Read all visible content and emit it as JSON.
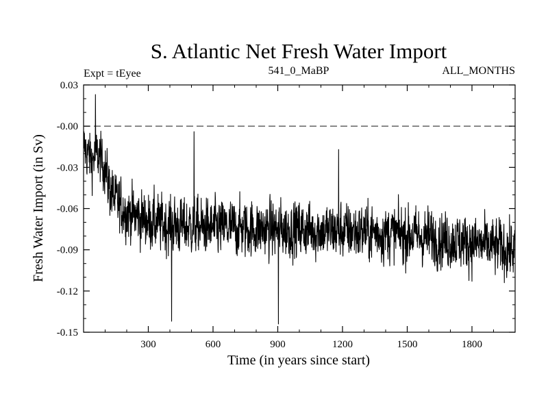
{
  "chart_data": {
    "type": "line",
    "title": "S. Atlantic Net Fresh Water Import",
    "subtitle_left": "Expt = tEyee",
    "subtitle_center": "541_0_MaBP",
    "subtitle_right": "ALL_MONTHS",
    "xlabel": "Time (in years since start)",
    "ylabel": "Fresh Water Import (in Sv)",
    "xlim": [
      0,
      2000
    ],
    "ylim": [
      -0.15,
      0.03
    ],
    "xticks": [
      300,
      600,
      900,
      1200,
      1500,
      1800
    ],
    "xtick_labels": [
      "300",
      "600",
      "900",
      "1200",
      "1500",
      "1800"
    ],
    "yticks": [
      0.03,
      0.0,
      -0.03,
      -0.06,
      -0.09,
      -0.12,
      -0.15
    ],
    "ytick_labels": [
      "0.03",
      "-0.00",
      "-0.03",
      "-0.06",
      "-0.09",
      "-0.12",
      "-0.15"
    ],
    "reference_line": {
      "y": 0.0,
      "style": "dashed"
    },
    "series": [
      {
        "name": "Net Fresh Water Import",
        "x": [
          0,
          20,
          40,
          60,
          80,
          100,
          120,
          150,
          200,
          250,
          300,
          350,
          400,
          450,
          500,
          600,
          700,
          800,
          900,
          1000,
          1100,
          1200,
          1300,
          1400,
          1500,
          1600,
          1700,
          1800,
          1900,
          2000
        ],
        "values": [
          -0.015,
          -0.02,
          -0.025,
          -0.02,
          -0.025,
          -0.03,
          -0.045,
          -0.055,
          -0.062,
          -0.066,
          -0.069,
          -0.071,
          -0.072,
          -0.073,
          -0.073,
          -0.074,
          -0.074,
          -0.075,
          -0.075,
          -0.075,
          -0.076,
          -0.076,
          -0.077,
          -0.078,
          -0.079,
          -0.081,
          -0.083,
          -0.085,
          -0.088,
          -0.09
        ],
        "noise_amplitude": 0.013,
        "notable_extremes": [
          {
            "x": 55,
            "y": 0.023
          },
          {
            "x": 408,
            "y": -0.142
          },
          {
            "x": 512,
            "y": -0.004
          },
          {
            "x": 903,
            "y": -0.144
          },
          {
            "x": 1182,
            "y": -0.017
          }
        ]
      }
    ]
  }
}
